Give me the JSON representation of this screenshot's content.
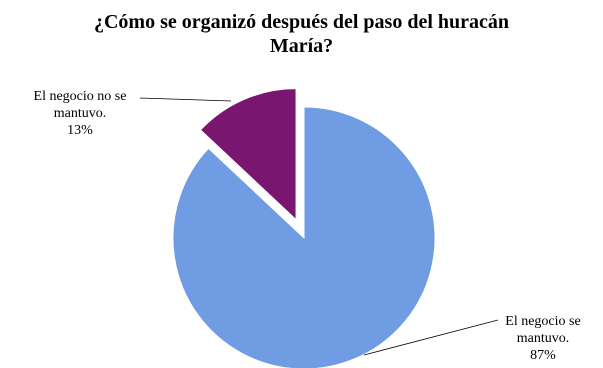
{
  "chart_data": {
    "type": "pie",
    "title_lines": [
      "¿Cómo se organizó  después del paso del huracán",
      "María?"
    ],
    "slices": [
      {
        "label_lines": [
          "El negocio se",
          "mantuvo."
        ],
        "value": 87,
        "pct_label": "87%",
        "color": "#6F9CE3",
        "exploded": false
      },
      {
        "label_lines": [
          "El negocio no se",
          "mantuvo."
        ],
        "value": 13,
        "pct_label": "13%",
        "color": "#7A1570",
        "exploded": true
      }
    ],
    "legend": "none"
  }
}
